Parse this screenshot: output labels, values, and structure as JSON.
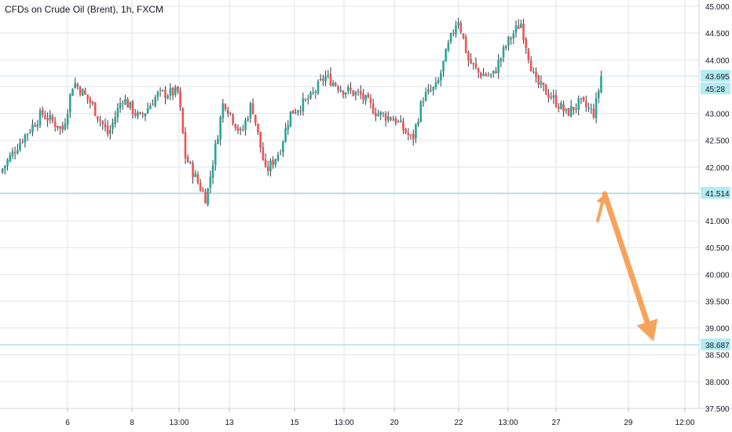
{
  "chart_data": {
    "type": "candlestick",
    "title": "CFDs on Crude Oil (Brent), 1h, FXCM",
    "ylim": [
      37.5,
      45.05
    ],
    "y_ticks": [
      "45.000",
      "44.500",
      "44.000",
      "43.500",
      "43.000",
      "42.500",
      "42.000",
      "41.500",
      "41.000",
      "40.500",
      "40.000",
      "39.500",
      "39.000",
      "38.500",
      "38.000",
      "37.500"
    ],
    "x_ticks": [
      {
        "label": "6",
        "index": 0
      },
      {
        "label": "8",
        "index": 1
      },
      {
        "label": "13:00",
        "index": 2
      },
      {
        "label": "13",
        "index": 3
      },
      {
        "label": "15",
        "index": 4
      },
      {
        "label": "13:00",
        "index": 5
      },
      {
        "label": "20",
        "index": 6
      },
      {
        "label": "22",
        "index": 7
      },
      {
        "label": "13:00",
        "index": 8
      },
      {
        "label": "27",
        "index": 9
      },
      {
        "label": "29",
        "index": 10
      },
      {
        "label": "12:00",
        "index": 11
      }
    ],
    "levels": [
      {
        "value": 43.695,
        "label": "43.695",
        "countdown": "45:28",
        "kind": "last-price"
      },
      {
        "value": 41.514,
        "label": "41.514",
        "kind": "horizontal-line"
      },
      {
        "value": 38.687,
        "label": "38.687",
        "kind": "horizontal-line"
      }
    ],
    "path_anchors": [
      {
        "t": 0,
        "p": 41.9
      },
      {
        "t": 0.03,
        "p": 42.5
      },
      {
        "t": 0.06,
        "p": 43.0
      },
      {
        "t": 0.09,
        "p": 42.7
      },
      {
        "t": 0.105,
        "p": 43.6
      },
      {
        "t": 0.13,
        "p": 43.2
      },
      {
        "t": 0.155,
        "p": 42.6
      },
      {
        "t": 0.175,
        "p": 43.3
      },
      {
        "t": 0.2,
        "p": 42.9
      },
      {
        "t": 0.225,
        "p": 43.35
      },
      {
        "t": 0.255,
        "p": 43.4
      },
      {
        "t": 0.265,
        "p": 42.2
      },
      {
        "t": 0.295,
        "p": 41.4
      },
      {
        "t": 0.31,
        "p": 42.5
      },
      {
        "t": 0.32,
        "p": 43.25
      },
      {
        "t": 0.345,
        "p": 42.6
      },
      {
        "t": 0.36,
        "p": 43.2
      },
      {
        "t": 0.38,
        "p": 41.9
      },
      {
        "t": 0.4,
        "p": 42.3
      },
      {
        "t": 0.415,
        "p": 43.0
      },
      {
        "t": 0.445,
        "p": 43.3
      },
      {
        "t": 0.465,
        "p": 43.7
      },
      {
        "t": 0.49,
        "p": 43.45
      },
      {
        "t": 0.515,
        "p": 43.35
      },
      {
        "t": 0.54,
        "p": 43.0
      },
      {
        "t": 0.565,
        "p": 42.9
      },
      {
        "t": 0.59,
        "p": 42.5
      },
      {
        "t": 0.605,
        "p": 43.3
      },
      {
        "t": 0.625,
        "p": 43.5
      },
      {
        "t": 0.64,
        "p": 44.2
      },
      {
        "t": 0.655,
        "p": 44.8
      },
      {
        "t": 0.67,
        "p": 44.0
      },
      {
        "t": 0.685,
        "p": 43.75
      },
      {
        "t": 0.705,
        "p": 43.7
      },
      {
        "t": 0.725,
        "p": 44.3
      },
      {
        "t": 0.745,
        "p": 44.7
      },
      {
        "t": 0.765,
        "p": 43.6
      },
      {
        "t": 0.79,
        "p": 43.3
      },
      {
        "t": 0.81,
        "p": 43.0
      },
      {
        "t": 0.83,
        "p": 43.2
      },
      {
        "t": 0.85,
        "p": 43.0
      },
      {
        "t": 0.86,
        "p": 43.69
      }
    ],
    "projection_arrows": [
      {
        "from": [
          0.855,
          41.0
        ],
        "to": [
          0.865,
          41.5
        ],
        "color": "#f7a35c"
      },
      {
        "from": [
          0.865,
          41.5
        ],
        "to": [
          0.935,
          38.75
        ],
        "color": "#f7a35c"
      }
    ],
    "candle_count": 240
  },
  "colors": {
    "up": "#26a69a",
    "down": "#ef5350",
    "wick": "#363a45",
    "grid": "#e0e3eb",
    "level_line": "#8ed1da",
    "badge": "#b2ebf2",
    "arrow": "#f7a35c",
    "axis_text": "#131722"
  }
}
